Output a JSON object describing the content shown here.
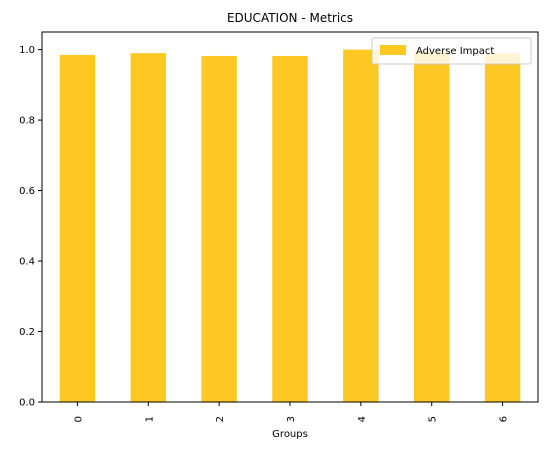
{
  "chart_data": {
    "type": "bar",
    "title": "EDUCATION - Metrics",
    "xlabel": "Groups",
    "ylabel": "",
    "categories": [
      "0",
      "1",
      "2",
      "3",
      "4",
      "5",
      "6"
    ],
    "series": [
      {
        "name": "Adverse Impact",
        "values": [
          0.985,
          0.99,
          0.982,
          0.982,
          1.0,
          0.995,
          0.99
        ]
      }
    ],
    "yticks": [
      "0.0",
      "0.2",
      "0.4",
      "0.6",
      "0.8",
      "1.0"
    ],
    "ylim": [
      0,
      1.05
    ],
    "grid": false,
    "legend_position": "top-right",
    "colors": {
      "bar": "#fdc724",
      "axis": "#000000"
    }
  }
}
